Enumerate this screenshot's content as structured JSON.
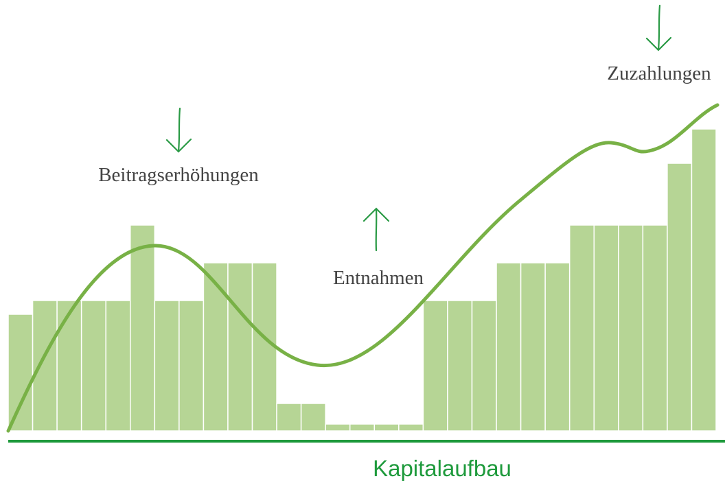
{
  "chart_data": {
    "type": "bar",
    "title": "Kapitalaufbau",
    "annotations": [
      "Beitragserhöhungen",
      "Entnahmen",
      "Zuzahlungen"
    ],
    "values": [
      34,
      38,
      38,
      38,
      38,
      60,
      38,
      38,
      49,
      49,
      49,
      8,
      8,
      2,
      2,
      2,
      2,
      38,
      38,
      38,
      49,
      49,
      49,
      60,
      60,
      60,
      60,
      78,
      88
    ],
    "color": "#b6d595",
    "ylim": [
      0,
      100
    ]
  }
}
